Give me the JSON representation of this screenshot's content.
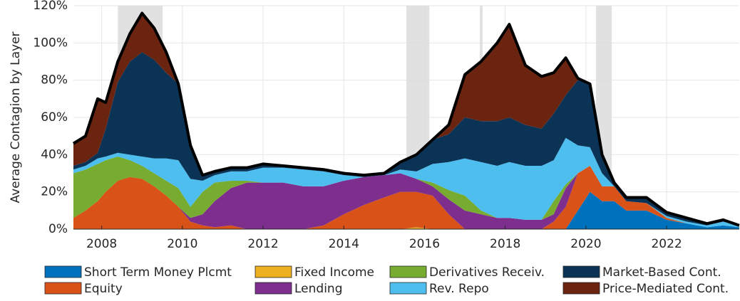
{
  "chart_data": {
    "type": "stacked-area",
    "y_label": "Average Contagion by Layer",
    "x": [
      2007.3,
      2007.6,
      2007.9,
      2008.1,
      2008.4,
      2008.7,
      2009.0,
      2009.3,
      2009.6,
      2009.9,
      2010.2,
      2010.5,
      2010.8,
      2011.2,
      2011.6,
      2012.0,
      2012.5,
      2013.0,
      2013.5,
      2014.0,
      2014.5,
      2015.0,
      2015.4,
      2015.8,
      2016.2,
      2016.6,
      2017.0,
      2017.4,
      2017.8,
      2018.1,
      2018.5,
      2018.9,
      2019.2,
      2019.5,
      2019.8,
      2020.1,
      2020.4,
      2020.7,
      2021.0,
      2021.5,
      2022.0,
      2022.5,
      2023.0,
      2023.4,
      2023.8
    ],
    "series": [
      {
        "name": "Short Term Money Plcmt",
        "color": "#0072bd",
        "values": [
          0,
          0,
          0,
          0,
          0,
          0,
          0,
          0,
          0,
          0,
          0,
          0,
          0,
          0,
          0,
          0,
          0,
          0,
          0,
          0,
          0,
          0,
          0,
          0,
          0,
          0,
          0,
          0,
          0,
          0,
          0,
          0,
          0,
          0,
          10,
          20,
          15,
          15,
          10,
          10,
          5,
          3,
          1,
          2,
          1
        ]
      },
      {
        "name": "Fixed Income",
        "color": "#edb120",
        "values": [
          0,
          0,
          0,
          0,
          0,
          0,
          0,
          0,
          0,
          0,
          0,
          0,
          0,
          0,
          0,
          0,
          0,
          0,
          0,
          0,
          0,
          0,
          0,
          1,
          0,
          0,
          0,
          0,
          0,
          0,
          0,
          0,
          0,
          0,
          0,
          0,
          0,
          0,
          0,
          0,
          0,
          0,
          0,
          0,
          0
        ]
      },
      {
        "name": "Equity",
        "color": "#d95319",
        "values": [
          6,
          10,
          15,
          20,
          26,
          28,
          27,
          23,
          18,
          12,
          4,
          2,
          1,
          2,
          0,
          0,
          0,
          0,
          2,
          8,
          13,
          17,
          20,
          19,
          18,
          8,
          0,
          0,
          0,
          0,
          0,
          0,
          4,
          12,
          20,
          14,
          8,
          8,
          5,
          4,
          1,
          0,
          0,
          0,
          0
        ]
      },
      {
        "name": "Lending",
        "color": "#7e2f8e",
        "values": [
          0,
          0,
          0,
          0,
          0,
          0,
          0,
          0,
          0,
          0,
          2,
          6,
          14,
          20,
          25,
          25,
          25,
          23,
          21,
          18,
          15,
          12,
          10,
          7,
          5,
          8,
          10,
          8,
          6,
          6,
          5,
          5,
          4,
          10,
          0,
          0,
          0,
          0,
          0,
          0,
          0,
          0,
          0,
          0,
          0
        ]
      },
      {
        "name": "Derivatives Receiv.",
        "color": "#77ac30",
        "values": [
          24,
          22,
          20,
          17,
          13,
          9,
          7,
          7,
          8,
          10,
          6,
          12,
          10,
          4,
          1,
          0,
          0,
          0,
          0,
          0,
          0,
          0,
          0,
          0,
          2,
          5,
          8,
          2,
          0,
          0,
          0,
          0,
          7,
          2,
          0,
          0,
          0,
          0,
          0,
          0,
          0,
          0,
          0,
          0,
          0
        ]
      },
      {
        "name": "Rev. Repo",
        "color": "#4dbeee",
        "values": [
          2,
          2,
          3,
          2,
          2,
          3,
          5,
          8,
          12,
          15,
          15,
          6,
          4,
          5,
          5,
          8,
          8,
          9,
          8,
          3,
          0,
          0,
          2,
          4,
          10,
          15,
          20,
          26,
          28,
          30,
          29,
          29,
          22,
          25,
          15,
          10,
          7,
          0,
          0,
          0,
          1,
          1,
          1,
          2,
          1
        ]
      },
      {
        "name": "Market-Based Cont.",
        "color": "#0b3356",
        "values": [
          2,
          2,
          3,
          15,
          38,
          50,
          56,
          53,
          46,
          41,
          18,
          3,
          2,
          2,
          2,
          2,
          1,
          1,
          1,
          1,
          1,
          1,
          4,
          9,
          13,
          15,
          22,
          22,
          24,
          24,
          22,
          20,
          25,
          23,
          35,
          34,
          10,
          2,
          2,
          3,
          2,
          2,
          1,
          1,
          0
        ]
      },
      {
        "name": "Price-Mediated Cont.",
        "color": "#6b2410",
        "values": [
          12,
          14,
          29,
          14,
          11,
          15,
          21,
          17,
          11,
          0,
          0,
          0,
          0,
          0,
          0,
          0,
          0,
          0,
          0,
          0,
          0,
          0,
          0,
          0,
          0,
          5,
          23,
          32,
          42,
          50,
          32,
          28,
          22,
          20,
          1,
          0,
          0,
          0,
          0,
          0,
          0,
          0,
          0,
          0,
          0
        ]
      }
    ],
    "shaded_periods": [
      [
        2008.4,
        2009.51
      ],
      [
        2015.55,
        2016.12
      ],
      [
        2017.37,
        2017.44
      ],
      [
        2020.25,
        2020.64
      ]
    ],
    "xlim": [
      2007.3,
      2023.8
    ],
    "xticks": [
      2008,
      2010,
      2012,
      2014,
      2016,
      2018,
      2020,
      2022
    ],
    "ylim": [
      0,
      120
    ],
    "yticks": [
      {
        "value": 0,
        "label": "0%"
      },
      {
        "value": 20,
        "label": "20%"
      },
      {
        "value": 40,
        "label": "40%"
      },
      {
        "value": 60,
        "label": "60%"
      },
      {
        "value": 80,
        "label": "80%"
      },
      {
        "value": 100,
        "label": "100%"
      },
      {
        "value": 120,
        "label": "120%"
      }
    ],
    "grid": true
  }
}
